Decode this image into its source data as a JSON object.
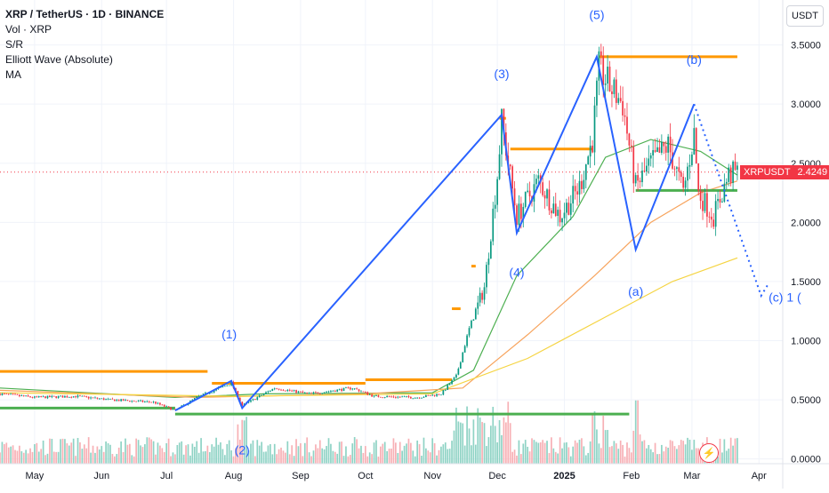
{
  "legend": {
    "title": "XRP / TetherUS · 1D · BINANCE",
    "lines": [
      "Vol · XRP",
      "S/R",
      "Elliott Wave (Absolute)",
      "MA"
    ]
  },
  "currency_button": "USDT",
  "price_tag": {
    "symbol": "XRPUSDT",
    "value": "2.4249"
  },
  "flash_icon": "lightning-icon",
  "colors": {
    "candle_up": "#089981",
    "candle_down": "#f23645",
    "wave": "#2962ff",
    "sr_orange": "#ff9800",
    "sr_green": "#4caf50",
    "ma_fast": "#4caf50",
    "ma_mid": "#f7a35c",
    "ma_slow": "#f5d442",
    "vol_up": "#8fd3c5",
    "vol_down": "#f7b0b5"
  },
  "chart_data": {
    "type": "candlestick",
    "symbol": "XRP / TetherUS",
    "interval": "1D",
    "exchange": "BINANCE",
    "last_price": 2.4249,
    "y_axis": {
      "ticks": [
        0.0,
        0.5,
        1.0,
        1.5,
        2.0,
        2.5,
        3.0,
        3.5
      ],
      "tick_labels": [
        "0.0000",
        "0.5000",
        "1.0000",
        "1.5000",
        "2.0000",
        "2.5000",
        "3.0000",
        "3.5000"
      ],
      "range": [
        -0.04,
        3.88
      ]
    },
    "x_axis": {
      "range": [
        "2024-04-15",
        "2025-04-12"
      ],
      "ticks": [
        {
          "date": "2024-05-01",
          "label": "May"
        },
        {
          "date": "2024-06-01",
          "label": "Jun"
        },
        {
          "date": "2024-07-01",
          "label": "Jul"
        },
        {
          "date": "2024-08-01",
          "label": "Aug"
        },
        {
          "date": "2024-09-01",
          "label": "Sep"
        },
        {
          "date": "2024-10-01",
          "label": "Oct"
        },
        {
          "date": "2024-11-01",
          "label": "Nov"
        },
        {
          "date": "2024-12-01",
          "label": "Dec"
        },
        {
          "date": "2025-01-01",
          "label": "2025"
        },
        {
          "date": "2025-02-01",
          "label": "Feb"
        },
        {
          "date": "2025-03-01",
          "label": "Mar"
        },
        {
          "date": "2025-04-01",
          "label": "Apr"
        }
      ]
    },
    "price_path": [
      [
        "2024-04-15",
        0.55
      ],
      [
        "2024-05-01",
        0.52
      ],
      [
        "2024-05-20",
        0.53
      ],
      [
        "2024-06-05",
        0.5
      ],
      [
        "2024-06-25",
        0.48
      ],
      [
        "2024-07-05",
        0.41
      ],
      [
        "2024-07-15",
        0.52
      ],
      [
        "2024-07-31",
        0.64
      ],
      [
        "2024-08-05",
        0.45
      ],
      [
        "2024-08-20",
        0.6
      ],
      [
        "2024-09-05",
        0.55
      ],
      [
        "2024-09-25",
        0.6
      ],
      [
        "2024-10-05",
        0.53
      ],
      [
        "2024-10-25",
        0.52
      ],
      [
        "2024-11-05",
        0.55
      ],
      [
        "2024-11-12",
        0.7
      ],
      [
        "2024-11-18",
        1.1
      ],
      [
        "2024-11-25",
        1.45
      ],
      [
        "2024-12-01",
        2.4
      ],
      [
        "2024-12-03",
        2.85
      ],
      [
        "2024-12-10",
        2.05
      ],
      [
        "2024-12-20",
        2.35
      ],
      [
        "2024-12-30",
        2.05
      ],
      [
        "2025-01-08",
        2.3
      ],
      [
        "2025-01-14",
        2.7
      ],
      [
        "2025-01-17",
        3.3
      ],
      [
        "2025-01-22",
        3.15
      ],
      [
        "2025-01-28",
        3.0
      ],
      [
        "2025-02-03",
        2.3
      ],
      [
        "2025-02-10",
        2.5
      ],
      [
        "2025-02-18",
        2.65
      ],
      [
        "2025-02-25",
        2.25
      ],
      [
        "2025-03-02",
        2.75
      ],
      [
        "2025-03-04",
        2.25
      ],
      [
        "2025-03-11",
        2.05
      ],
      [
        "2025-03-18",
        2.4
      ],
      [
        "2025-03-22",
        2.42
      ]
    ],
    "moving_averages": [
      {
        "color_key": "ma_fast",
        "points": [
          [
            "2024-04-15",
            0.6
          ],
          [
            "2024-07-05",
            0.52
          ],
          [
            "2024-08-15",
            0.55
          ],
          [
            "2024-11-01",
            0.56
          ],
          [
            "2024-11-20",
            0.75
          ],
          [
            "2024-12-10",
            1.55
          ],
          [
            "2025-01-05",
            2.05
          ],
          [
            "2025-01-20",
            2.55
          ],
          [
            "2025-02-10",
            2.7
          ],
          [
            "2025-03-05",
            2.6
          ],
          [
            "2025-03-22",
            2.4
          ]
        ]
      },
      {
        "color_key": "ma_mid",
        "points": [
          [
            "2024-04-15",
            0.58
          ],
          [
            "2024-07-15",
            0.52
          ],
          [
            "2024-10-01",
            0.55
          ],
          [
            "2024-11-15",
            0.6
          ],
          [
            "2024-12-15",
            1.05
          ],
          [
            "2025-01-15",
            1.55
          ],
          [
            "2025-02-10",
            2.0
          ],
          [
            "2025-03-05",
            2.25
          ],
          [
            "2025-03-22",
            2.35
          ]
        ]
      },
      {
        "color_key": "ma_slow",
        "points": [
          [
            "2024-04-15",
            0.56
          ],
          [
            "2024-08-01",
            0.53
          ],
          [
            "2024-11-01",
            0.55
          ],
          [
            "2024-12-15",
            0.85
          ],
          [
            "2025-01-20",
            1.2
          ],
          [
            "2025-02-20",
            1.5
          ],
          [
            "2025-03-22",
            1.7
          ]
        ]
      }
    ],
    "support_resistance": [
      {
        "color_key": "sr_orange",
        "from": "2024-04-15",
        "to": "2024-07-20",
        "price": 0.74
      },
      {
        "color_key": "sr_orange",
        "from": "2024-07-22",
        "to": "2024-10-01",
        "price": 0.64
      },
      {
        "color_key": "sr_orange",
        "from": "2024-10-01",
        "to": "2024-11-10",
        "price": 0.67
      },
      {
        "color_key": "sr_orange",
        "from": "2024-11-10",
        "to": "2024-11-14",
        "price": 1.27
      },
      {
        "color_key": "sr_orange",
        "from": "2024-11-19",
        "to": "2024-11-21",
        "price": 1.63
      },
      {
        "color_key": "sr_orange",
        "from": "2024-12-02",
        "to": "2024-12-05",
        "price": 2.88
      },
      {
        "color_key": "sr_orange",
        "from": "2024-12-07",
        "to": "2025-01-14",
        "price": 2.62
      },
      {
        "color_key": "sr_orange",
        "from": "2025-01-17",
        "to": "2025-03-22",
        "price": 3.4
      },
      {
        "color_key": "sr_green",
        "from": "2024-04-15",
        "to": "2024-07-05",
        "price": 0.43
      },
      {
        "color_key": "sr_green",
        "from": "2024-07-05",
        "to": "2025-01-31",
        "price": 0.38
      },
      {
        "color_key": "sr_green",
        "from": "2025-02-03",
        "to": "2025-03-22",
        "price": 2.27
      }
    ],
    "elliott_wave": {
      "points": [
        [
          "2024-07-05",
          0.41
        ],
        [
          "2024-07-31",
          0.66
        ],
        [
          "2024-08-05",
          0.43
        ],
        [
          "2024-12-03",
          2.91
        ],
        [
          "2024-12-10",
          1.91
        ],
        [
          "2025-01-16",
          3.4
        ],
        [
          "2025-02-03",
          1.77
        ],
        [
          "2025-03-02",
          3.0
        ]
      ],
      "projection": [
        [
          "2025-03-02",
          3.0
        ],
        [
          "2025-04-02",
          1.38
        ],
        [
          "2025-04-05",
          1.47
        ]
      ],
      "labels": [
        {
          "text": "(1)",
          "date": "2024-07-30",
          "price": 1.02
        },
        {
          "text": "(2)",
          "date": "2024-08-05",
          "price": 0.04
        },
        {
          "text": "(3)",
          "date": "2024-12-03",
          "price": 3.22
        },
        {
          "text": "(4)",
          "date": "2024-12-10",
          "price": 1.54
        },
        {
          "text": "(5)",
          "date": "2025-01-16",
          "price": 3.72
        },
        {
          "text": "(a)",
          "date": "2025-02-03",
          "price": 1.38
        },
        {
          "text": "(b)",
          "date": "2025-03-02",
          "price": 3.34
        },
        {
          "text": "(c) 1 (",
          "date": "2025-04-13",
          "price": 1.33
        }
      ]
    },
    "volume": "relative bars at bottom, largest spikes in mid-Nov 2024, early Dec 2024, mid-Jan 2025 and early Feb 2025"
  }
}
